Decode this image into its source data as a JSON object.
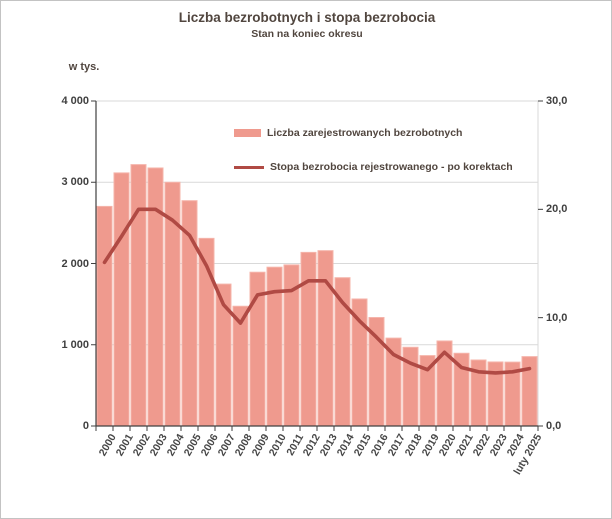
{
  "header": {
    "title": "Liczba bezrobotnych i stopa bezrobocia",
    "subtitle": "Stan na koniec okresu"
  },
  "axes": {
    "left_unit_label": "w tys.",
    "left_tick_labels": [
      "4 000",
      "3 000",
      "2 000",
      "1 000",
      "0"
    ],
    "left_tick_values": [
      4000,
      3000,
      2000,
      1000,
      0
    ],
    "right_tick_labels": [
      "30,0",
      "20,0",
      "10,0",
      "0,0"
    ],
    "right_tick_values": [
      30,
      20,
      10,
      0
    ]
  },
  "legend": {
    "items": [
      {
        "label": "Liczba zarejestrowanych bezrobotnych",
        "swatch": "bar",
        "color": "#EF9A8E"
      },
      {
        "label": "Stopa bezrobocia rejestrowanego - po korektach",
        "swatch": "line",
        "color": "#B04A44"
      }
    ]
  },
  "colors": {
    "bar_fill": "#EF9A8E",
    "bar_edge": "#F5B4AA",
    "line": "#B04A44",
    "grid": "#D9D9D9",
    "axis": "#404040",
    "text_dark": "#51463f"
  },
  "chart_data": {
    "type": "bar+line",
    "title": "Liczba bezrobotnych i stopa bezrobocia",
    "subtitle": "Stan na koniec okresu",
    "categories": [
      "2000",
      "2001",
      "2002",
      "2003",
      "2004",
      "2005",
      "2006",
      "2007",
      "2008",
      "2009",
      "2010",
      "2011",
      "2012",
      "2013",
      "2014",
      "2015",
      "2016",
      "2017",
      "2018",
      "2019",
      "2020",
      "2021",
      "2022",
      "2023",
      "2024",
      "luty 2025"
    ],
    "series": [
      {
        "name": "Liczba zarejestrowanych bezrobotnych",
        "type": "bar",
        "axis": "left",
        "unit": "tys.",
        "values": [
          2702.6,
          3115.1,
          3217.0,
          3175.7,
          2999.6,
          2773.0,
          2309.4,
          1746.6,
          1473.8,
          1892.7,
          1954.7,
          1982.7,
          2136.8,
          2157.9,
          1825.2,
          1563.3,
          1335.2,
          1081.7,
          968.9,
          866.4,
          1046.4,
          895.2,
          812.3,
          788.2,
          786.3,
          853.9
        ]
      },
      {
        "name": "Stopa bezrobocia rejestrowanego - po korektach",
        "type": "line",
        "axis": "right",
        "unit": "%",
        "values": [
          15.1,
          17.5,
          20.0,
          20.0,
          19.0,
          17.6,
          14.8,
          11.2,
          9.5,
          12.1,
          12.4,
          12.5,
          13.4,
          13.4,
          11.4,
          9.7,
          8.2,
          6.6,
          5.8,
          5.2,
          6.8,
          5.4,
          5.0,
          4.9,
          5.0,
          5.3
        ]
      }
    ],
    "ylabel_left": "w tys.",
    "ylim_left": [
      0,
      4000
    ],
    "ylim_right": [
      0,
      30
    ],
    "grid": "horizontal",
    "legend_position": "top-inside"
  }
}
